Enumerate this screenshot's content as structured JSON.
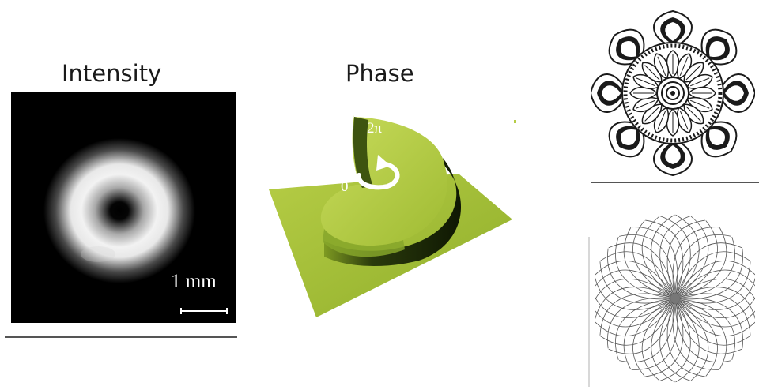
{
  "intensity": {
    "title": "Intensity",
    "scalebar_label": "1 mm",
    "colors": {
      "background": "#000000",
      "ring": "#ffffff"
    }
  },
  "phase": {
    "title": "Phase",
    "label_top": "2π",
    "label_start": "0",
    "colors": {
      "surface": "#a6c33b",
      "shadow": "#1c2b07",
      "arrow": "#ffffff"
    },
    "icons": [
      "circular-arrow-icon"
    ]
  },
  "patterns": {
    "top_icon": "mandala-icon",
    "bottom_icon": "spiral-rosette-icon",
    "colors": {
      "ink": "#1a1a1a",
      "divider": "#555555"
    }
  }
}
